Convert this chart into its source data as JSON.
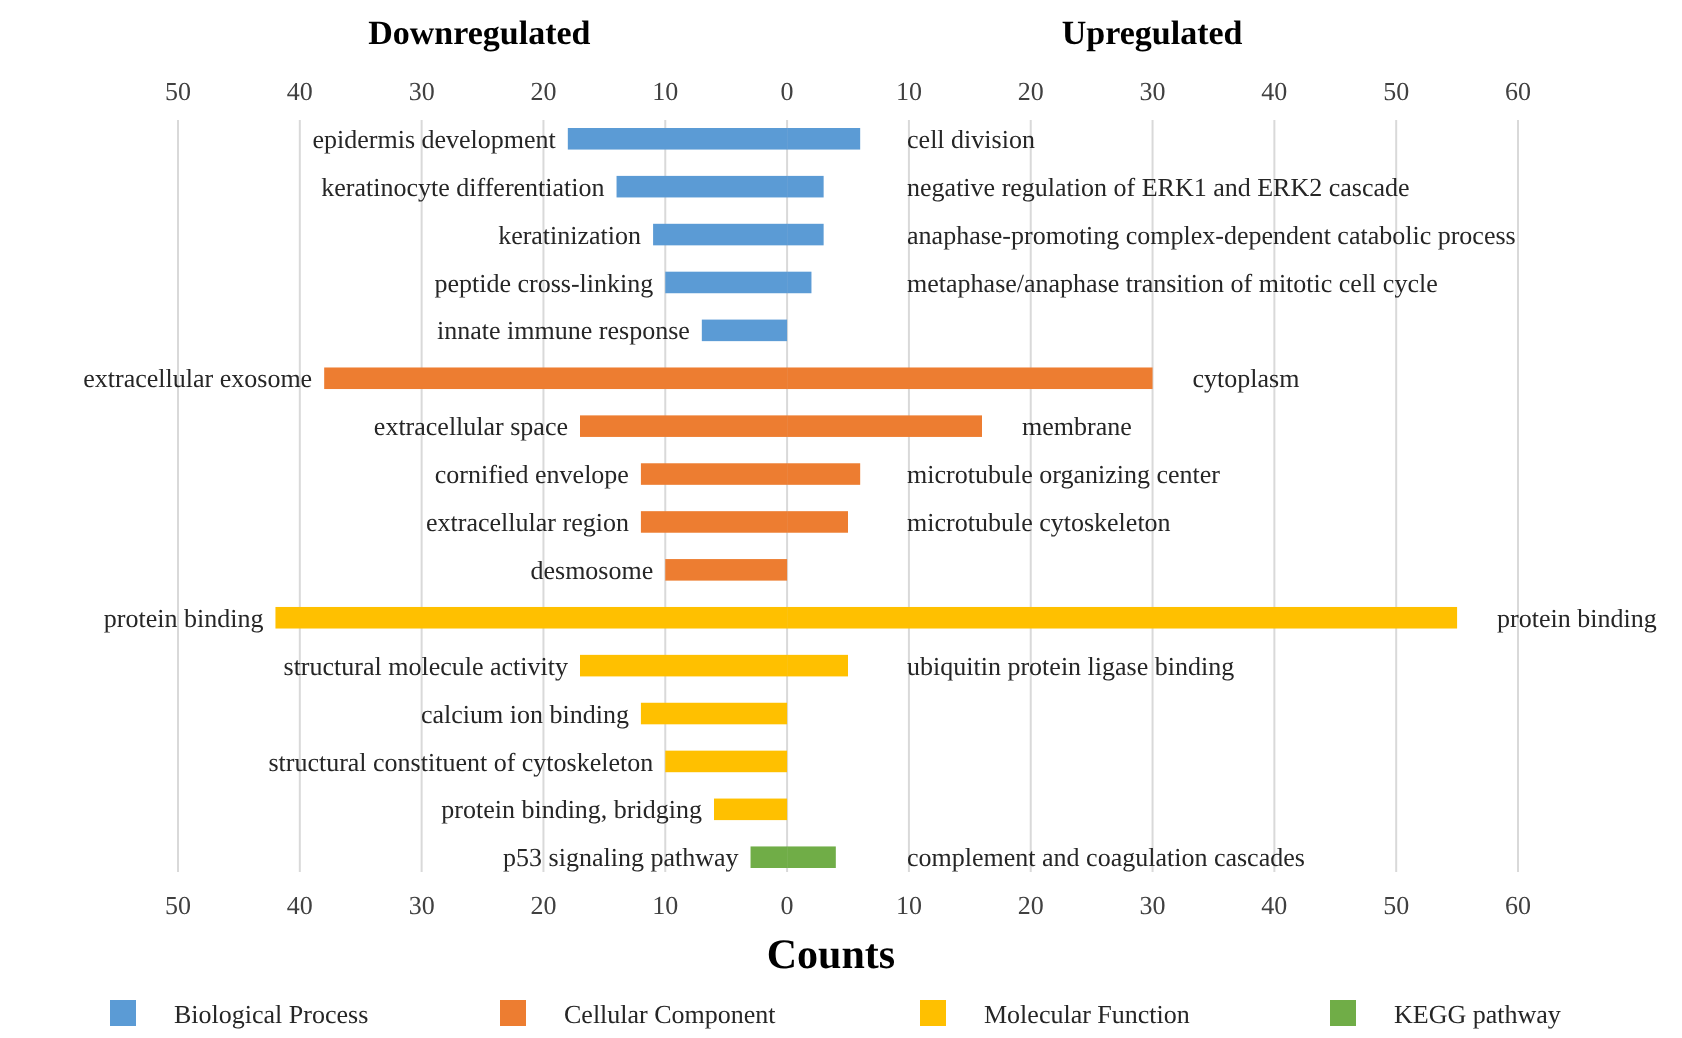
{
  "chart_data": {
    "type": "bar",
    "orientation": "horizontal",
    "stacked": true,
    "xlabel": "Counts",
    "categories": [
      "epidermis development",
      "keratinocyte differentiation",
      "keratinization",
      "peptide cross-linking",
      "innate immune response",
      "extracellular exosome",
      "extracellular space",
      "cornified envelope",
      "extracellular region",
      "desmosome",
      "protein binding",
      "structural molecule activity",
      "calcium ion binding",
      "structural constituent of cytoskeleton",
      "protein binding, bridging",
      "p53 signaling pathway"
    ],
    "series": [
      {
        "name": "Biological Process",
        "color": "#5b9bd5",
        "values": [
          -18,
          -14,
          -11,
          -10,
          -7,
          null,
          null,
          null,
          null,
          null,
          null,
          null,
          null,
          null,
          null,
          null
        ]
      },
      {
        "color": "#5b9bd5",
        "values": [
          6,
          3,
          3,
          2,
          null,
          null,
          null,
          null,
          null,
          null,
          null,
          null,
          null,
          null,
          null,
          null
        ]
      },
      {
        "name": "Cellular Component",
        "color": "#ed7d31",
        "values": [
          null,
          null,
          null,
          null,
          null,
          -38,
          -17,
          -12,
          -12,
          -10,
          null,
          null,
          null,
          null,
          null,
          null
        ]
      },
      {
        "color": "#ed7d31",
        "values": [
          null,
          null,
          null,
          null,
          null,
          30,
          16,
          6,
          5,
          null,
          null,
          null,
          null,
          null,
          null,
          null
        ]
      },
      {
        "name": "Molecular Function",
        "color": "#ffc000",
        "values": [
          null,
          null,
          null,
          null,
          null,
          null,
          null,
          null,
          null,
          null,
          -42,
          -17,
          -12,
          -10,
          -6,
          null
        ]
      },
      {
        "color": "#ffc000",
        "values": [
          null,
          null,
          null,
          null,
          null,
          null,
          null,
          null,
          null,
          null,
          55,
          5,
          null,
          null,
          null,
          null
        ]
      },
      {
        "name": "KEGG pathway",
        "color": "#70ad47",
        "values": [
          null,
          null,
          null,
          null,
          null,
          null,
          null,
          null,
          null,
          null,
          null,
          null,
          null,
          null,
          null,
          -3
        ]
      },
      {
        "color": "#70ad47",
        "values": [
          null,
          null,
          null,
          null,
          null,
          null,
          null,
          null,
          null,
          null,
          null,
          null,
          null,
          null,
          null,
          4
        ]
      }
    ],
    "xlim": [
      -50,
      60
    ],
    "xticks": [
      {
        "value": -50,
        "label": "50"
      },
      {
        "value": -40,
        "label": "40"
      },
      {
        "value": -30,
        "label": "30"
      },
      {
        "value": -20,
        "label": "20"
      },
      {
        "value": -10,
        "label": "10"
      },
      0,
      10,
      20,
      30,
      40,
      50,
      60
    ],
    "x2lim": [
      -50,
      60
    ],
    "x2ticks": [
      {
        "value": -50,
        "label": "50"
      },
      {
        "value": -40,
        "label": "40"
      },
      {
        "value": -30,
        "label": "30"
      },
      {
        "value": -20,
        "label": "20"
      },
      {
        "value": -10,
        "label": "10"
      },
      0,
      10,
      20,
      30,
      40,
      50,
      60
    ],
    "annotations": [
      "Downregulated",
      "Upregulated",
      "cell division",
      "negative regulation of ERK1 and ERK2 cascade",
      "anaphase-promoting complex-dependent catabolic process",
      "metaphase/anaphase transition of mitotic cell cycle",
      "cytoplasm",
      "membrane",
      "microtubule organizing center",
      "microtubule cytoskeleton",
      "protein binding",
      "ubiquitin protein ligase binding",
      "complement and coagulation cascades"
    ],
    "grid": "x",
    "legend": "bottom"
  }
}
